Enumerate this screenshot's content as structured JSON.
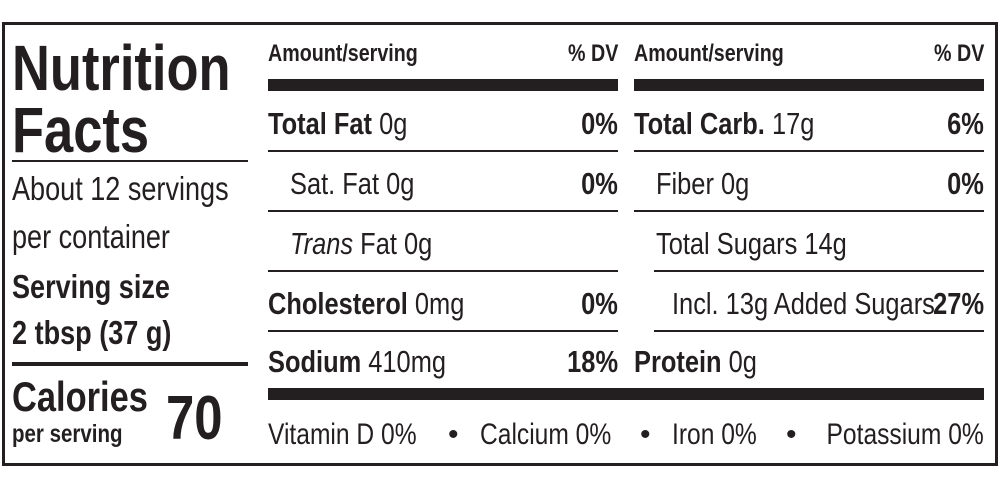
{
  "label": {
    "title_line1": "Nutrition",
    "title_line2": "Facts",
    "servings_line1": "About 12 servings",
    "servings_line2": "per container",
    "serving_size_label": "Serving size",
    "serving_size": "2 tbsp (37 g)",
    "calories_label": "Calories",
    "calories_sub": "per serving",
    "calories": "70",
    "columns": [
      {
        "header_amount": "Amount/serving",
        "header_dv": "% DV",
        "rows": [
          {
            "label": "Total Fat",
            "amount": "0g",
            "dv": "0%"
          },
          {
            "label": "Sat. Fat",
            "amount": "0g",
            "dv": "0%"
          },
          {
            "label": "Trans",
            "amount": "Fat 0g"
          },
          {
            "label": "Cholesterol",
            "amount": "0mg",
            "dv": "0%"
          },
          {
            "label": "Sodium",
            "amount": "410mg",
            "dv": "18%"
          }
        ]
      },
      {
        "header_amount": "Amount/serving",
        "header_dv": "% DV",
        "rows": [
          {
            "label": "Total Carb.",
            "amount": "17g",
            "dv": "6%"
          },
          {
            "label": "Fiber",
            "amount": "0g",
            "dv": "0%"
          },
          {
            "label": "Total Sugars",
            "amount": "14g"
          },
          {
            "label": "Incl. 13g Added Sugars",
            "dv": "27%"
          },
          {
            "label": "Protein",
            "amount": "0g"
          }
        ]
      }
    ],
    "vitamins": [
      "Vitamin D 0%",
      "Calcium 0%",
      "Iron 0%",
      "Potassium 0%"
    ]
  }
}
